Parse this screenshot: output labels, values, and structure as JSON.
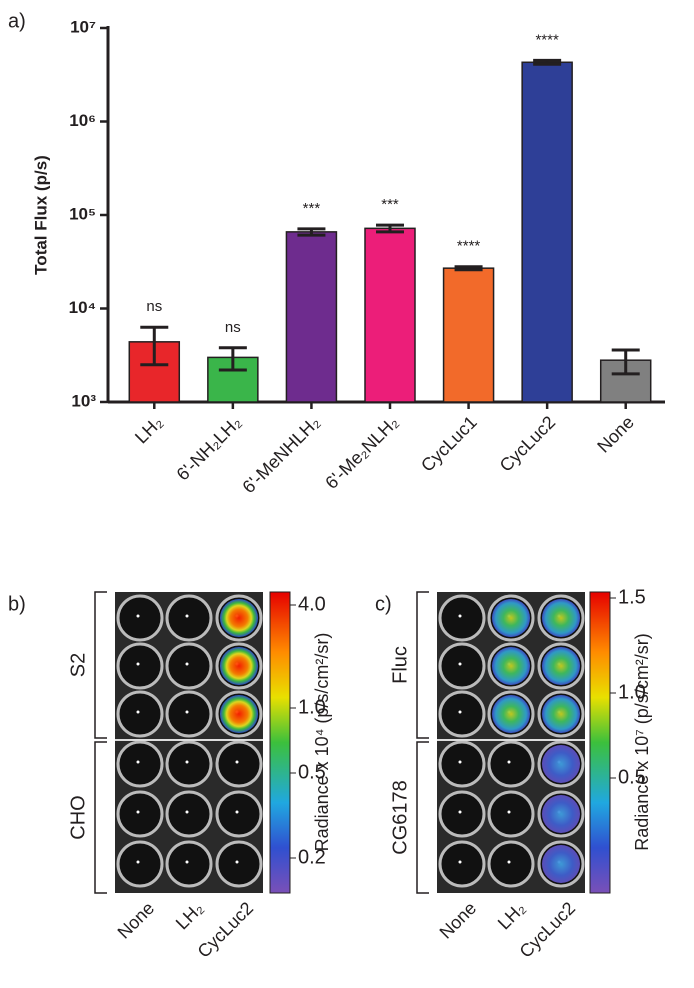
{
  "chart_data": {
    "type": "bar",
    "panel_label": "a)",
    "y_label": "Total Flux (p/s)",
    "y_log": true,
    "categories": [
      "LH₂",
      "6'-NH₂LH₂",
      "6'-MeNHLH₂",
      "6'-Me₂NLH₂",
      "CycLuc1",
      "CycLuc2",
      "None"
    ],
    "values": [
      4400,
      3000,
      66000,
      72000,
      27000,
      4300000,
      2800
    ],
    "errors": [
      1900,
      800,
      5000,
      6000,
      1000,
      200000,
      800
    ],
    "colors": [
      "#e8262a",
      "#3ab54a",
      "#6e2c8e",
      "#ec1e79",
      "#f26a2a",
      "#2e3f97",
      "#808080"
    ],
    "annotations": [
      "ns",
      "ns",
      "***",
      "***",
      "****",
      "****",
      null
    ],
    "ylim": [
      1000,
      10000000
    ],
    "yticks": [
      {
        "value": 1000,
        "label": "10³"
      },
      {
        "value": 10000,
        "label": "10⁴"
      },
      {
        "value": 100000,
        "label": "10⁵"
      },
      {
        "value": 1000000,
        "label": "10⁶"
      },
      {
        "value": 10000000,
        "label": "10⁷"
      }
    ]
  },
  "panel_b": {
    "label": "b)",
    "rows": [
      "S2",
      "CHO"
    ],
    "columns": [
      "None",
      "LH₂",
      "CycLuc2"
    ],
    "colorbar_label": "Radiance x 10⁴ (p/s/cm²/sr)",
    "colorbar_ticks": [
      "4.0",
      "1.0",
      "0.5",
      "0.2"
    ]
  },
  "panel_c": {
    "label": "c)",
    "rows": [
      "Fluc",
      "CG6178"
    ],
    "columns": [
      "None",
      "LH₂",
      "CycLuc2"
    ],
    "colorbar_label": "Radiance x 10⁷ (p/s/cm²/sr)",
    "colorbar_ticks": [
      "1.5",
      "1.0",
      "0.5"
    ]
  }
}
